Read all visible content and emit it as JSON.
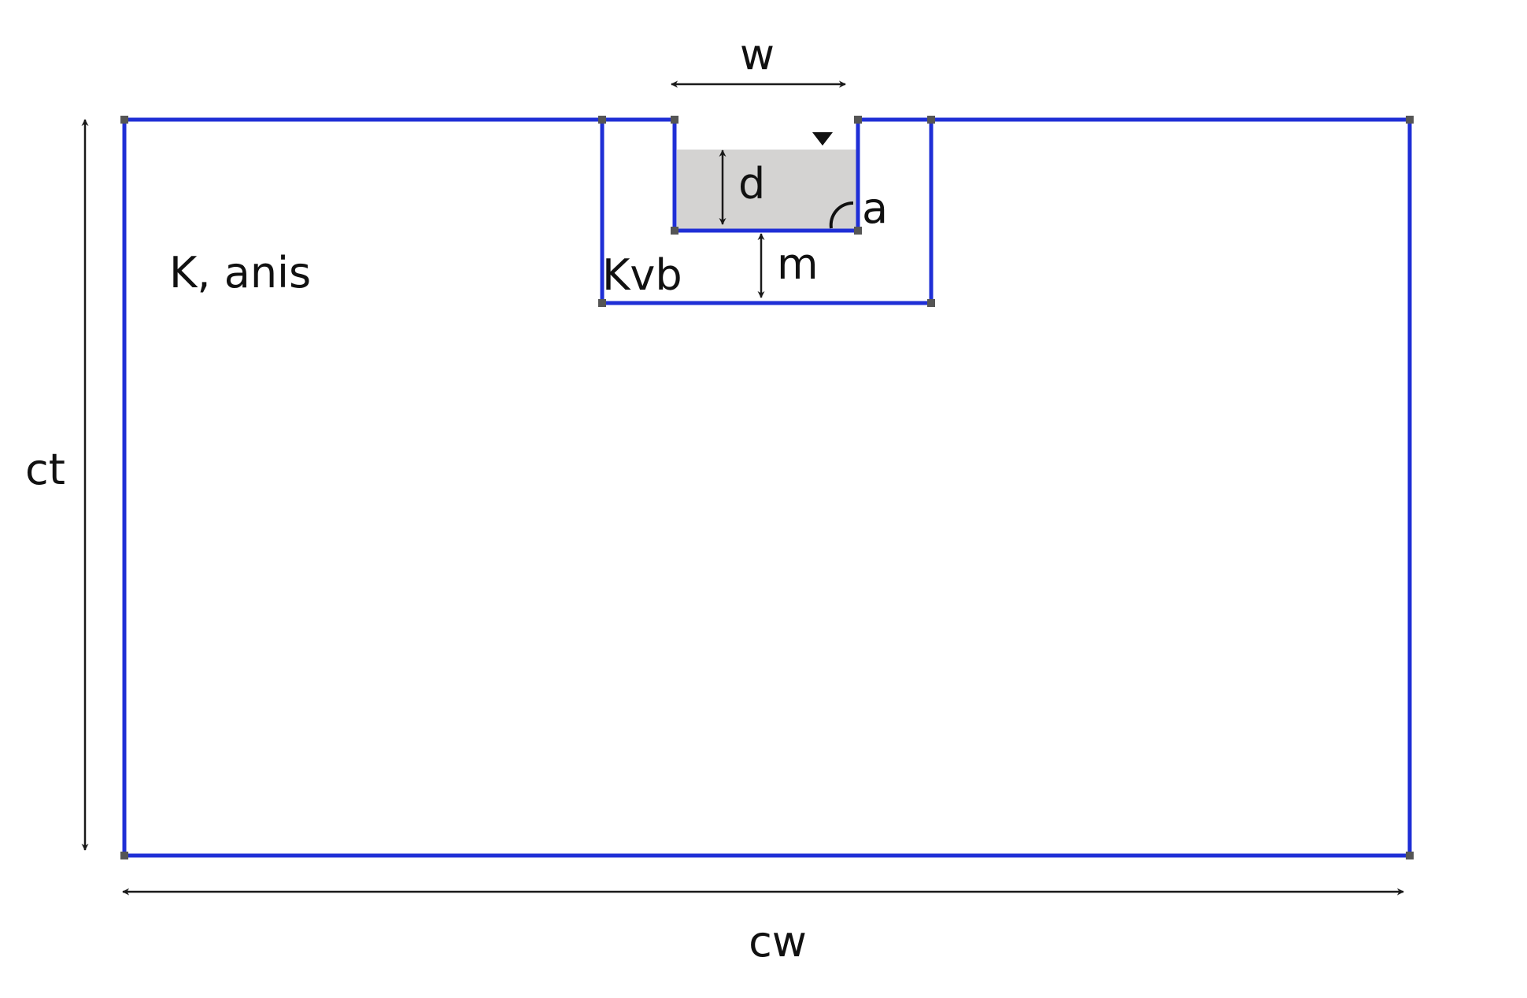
{
  "labels": {
    "channel_width": "w",
    "water_depth": "d",
    "angle": "a",
    "offset_below_channel": "m",
    "vertical_block_conductivity": "Kvb",
    "domain_conductivity": "K, anis",
    "domain_thickness": "ct",
    "domain_width": "cw"
  },
  "colors": {
    "boundary": "#1f2fd6",
    "water": "#d4d3d2",
    "vertex": "#555555",
    "dimension": "#1a1a1a"
  },
  "icons": {
    "water_level": "water-level-triangle-icon",
    "angle": "angle-arc-icon"
  }
}
